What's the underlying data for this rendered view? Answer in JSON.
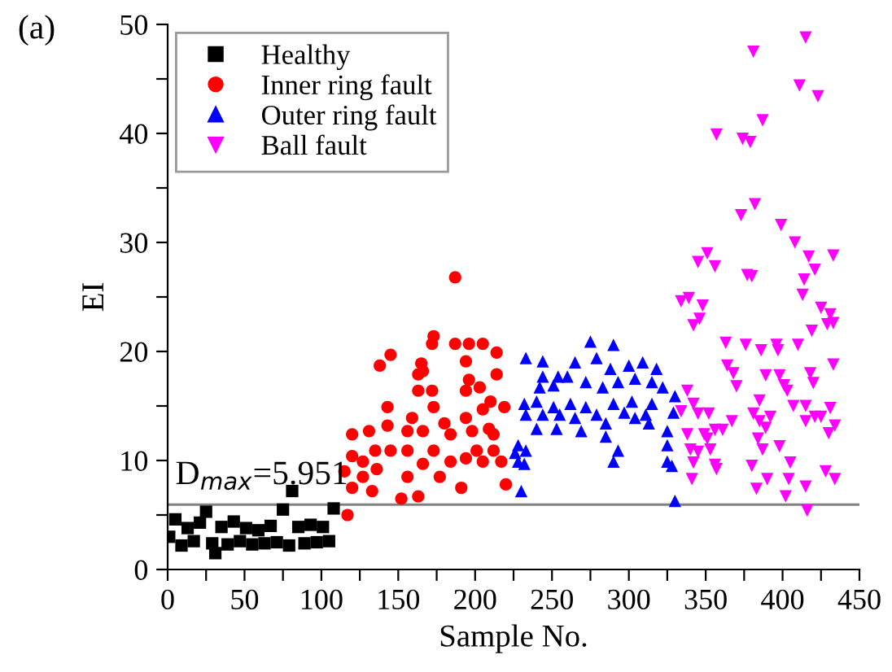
{
  "chart_data": {
    "type": "scatter",
    "xlabel": "Sample No.",
    "ylabel": "EI",
    "annotations": [
      "(a)"
    ],
    "xlim": [
      0,
      450
    ],
    "ylim": [
      0,
      50
    ],
    "xticks": [
      0,
      {
        "value": 25,
        "label": null
      },
      50,
      {
        "value": 75,
        "label": null
      },
      100,
      {
        "value": 125,
        "label": null
      },
      150,
      {
        "value": 175,
        "label": null
      },
      200,
      {
        "value": 225,
        "label": null
      },
      250,
      {
        "value": 275,
        "label": null
      },
      300,
      {
        "value": 325,
        "label": null
      },
      350,
      {
        "value": 375,
        "label": null
      },
      400,
      {
        "value": 425,
        "label": null
      },
      450
    ],
    "yticks": [
      0,
      {
        "value": 5,
        "label": null
      },
      10,
      {
        "value": 15,
        "label": null
      },
      20,
      {
        "value": 25,
        "label": null
      },
      30,
      {
        "value": 35,
        "label": null
      },
      40,
      {
        "value": 45,
        "label": null
      },
      50
    ],
    "ref_lines": [
      {
        "axis": "y",
        "value": 5.951,
        "label": "D$_{max}$=5.951",
        "color": "#808080"
      }
    ],
    "legend": "top left",
    "grid": false,
    "series": [
      {
        "name": "Healthy",
        "color": "#000000",
        "marker": "square",
        "x": [
          1,
          5,
          9,
          13,
          17,
          21,
          25,
          29,
          31,
          35,
          39,
          43,
          47,
          51,
          55,
          59,
          63,
          67,
          71,
          75,
          79,
          81,
          85,
          89,
          93,
          97,
          101,
          105,
          108
        ],
        "values": [
          3.0,
          4.6,
          2.2,
          3.8,
          2.6,
          4.3,
          5.3,
          2.4,
          1.5,
          3.9,
          2.3,
          4.4,
          2.6,
          3.8,
          2.3,
          3.6,
          2.4,
          4.0,
          2.5,
          5.5,
          2.2,
          7.2,
          3.9,
          2.4,
          4.1,
          2.5,
          3.9,
          2.6,
          5.6
        ]
      },
      {
        "name": "Inner ring fault",
        "color": "#ff0000",
        "marker": "circle",
        "x": [
          187,
          173,
          172,
          187,
          196,
          205,
          214,
          145,
          138,
          165,
          166,
          163,
          194,
          196,
          214,
          163,
          172,
          194,
          203,
          143,
          173,
          205,
          219,
          210,
          159,
          180,
          194,
          143,
          131,
          120,
          166,
          156,
          184,
          198,
          209,
          135,
          145,
          156,
          173,
          201,
          212,
          120,
          127,
          166,
          184,
          194,
          205,
          115,
          127,
          136,
          156,
          177,
          191,
          120,
          133,
          152,
          163,
          117,
          212,
          217,
          220
        ],
        "values": [
          26.8,
          21.4,
          20.7,
          20.7,
          20.7,
          20.7,
          19.9,
          19.7,
          18.7,
          18.9,
          18.2,
          17.9,
          19.1,
          17.4,
          17.9,
          16.4,
          16.4,
          16.4,
          16.7,
          14.9,
          14.9,
          14.7,
          14.9,
          15.4,
          13.9,
          13.4,
          13.9,
          13.2,
          12.7,
          12.4,
          12.7,
          12.7,
          12.4,
          12.7,
          12.9,
          10.9,
          10.9,
          10.9,
          10.9,
          10.9,
          10.9,
          10.4,
          9.9,
          9.7,
          9.9,
          10.2,
          9.9,
          9.0,
          8.5,
          9.2,
          8.5,
          8.5,
          7.5,
          7.5,
          7.2,
          6.5,
          6.7,
          5.0,
          12.4,
          9.9,
          7.8
        ]
      },
      {
        "name": "Outer ring fault",
        "color": "#0000ff",
        "marker": "triangle",
        "x": [
          233,
          244,
          275,
          290,
          265,
          279,
          288,
          244,
          254,
          260,
          300,
          309,
          318,
          293,
          304,
          315,
          322,
          283,
          272,
          251,
          242,
          232,
          240,
          251,
          262,
          272,
          290,
          302,
          315,
          330,
          233,
          244,
          255,
          265,
          279,
          297,
          311,
          329,
          240,
          253,
          269,
          285,
          285,
          304,
          313,
          325,
          228,
          233,
          228,
          232,
          293,
          290,
          325,
          325,
          328,
          230,
          330,
          226
        ],
        "values": [
          19.4,
          19.1,
          20.9,
          20.6,
          19.0,
          19.4,
          18.4,
          17.7,
          17.7,
          17.7,
          18.7,
          19.0,
          18.4,
          17.2,
          17.5,
          17.2,
          16.7,
          16.7,
          17.2,
          16.9,
          16.7,
          15.2,
          15.4,
          14.9,
          15.2,
          14.9,
          15.2,
          15.4,
          15.2,
          15.9,
          14.2,
          14.2,
          14.2,
          13.9,
          14.2,
          14.4,
          14.2,
          14.4,
          12.9,
          12.9,
          12.7,
          13.4,
          12.2,
          13.9,
          13.4,
          12.7,
          11.4,
          10.9,
          9.9,
          9.7,
          10.9,
          9.9,
          11.4,
          9.9,
          9.5,
          7.2,
          6.3,
          10.7
        ]
      },
      {
        "name": "Ball fault",
        "color": "#ff00ff",
        "marker": "triangle_down",
        "x": [
          415,
          381,
          411,
          423,
          387,
          357,
          374,
          379,
          382,
          373,
          399,
          408,
          351,
          345,
          356,
          417,
          421,
          433,
          377,
          380,
          414,
          413,
          334,
          339,
          348,
          346,
          342,
          425,
          431,
          433,
          429,
          419,
          363,
          376,
          396,
          410,
          386,
          397,
          364,
          368,
          370,
          433,
          389,
          398,
          401,
          403,
          418,
          420,
          338,
          342,
          345,
          334,
          352,
          356,
          361,
          367,
          385,
          381,
          385,
          392,
          389,
          407,
          415,
          421,
          425,
          415,
          431,
          434,
          338,
          349,
          351,
          353,
          340,
          345,
          342,
          341,
          356,
          357,
          384,
          398,
          387,
          405,
          404,
          402,
          380,
          383,
          390,
          415,
          416,
          428,
          434,
          430
        ],
        "values": [
          48.8,
          47.5,
          44.4,
          43.4,
          41.2,
          39.9,
          39.5,
          39.2,
          33.5,
          32.5,
          31.6,
          30.0,
          29.0,
          28.2,
          27.8,
          28.7,
          27.5,
          28.8,
          27.0,
          26.9,
          26.6,
          25.2,
          24.6,
          24.9,
          24.2,
          23.0,
          22.4,
          24.0,
          23.4,
          22.6,
          22.5,
          21.9,
          20.8,
          20.6,
          20.6,
          20.6,
          20.1,
          20.1,
          18.7,
          18.0,
          16.8,
          18.8,
          17.8,
          17.8,
          16.9,
          16.4,
          18.0,
          17.1,
          16.4,
          15.2,
          14.3,
          14.5,
          14.3,
          12.8,
          12.8,
          13.6,
          15.5,
          14.3,
          13.6,
          14.0,
          13.0,
          15.0,
          15.0,
          14.0,
          14.0,
          13.6,
          14.8,
          13.2,
          12.4,
          12.4,
          12.0,
          11.0,
          11.0,
          10.8,
          9.8,
          8.3,
          9.6,
          9.2,
          12.0,
          11.3,
          11.0,
          9.8,
          8.3,
          6.7,
          9.5,
          7.4,
          8.3,
          7.6,
          5.4,
          9.0,
          8.3,
          12.5
        ]
      }
    ]
  }
}
